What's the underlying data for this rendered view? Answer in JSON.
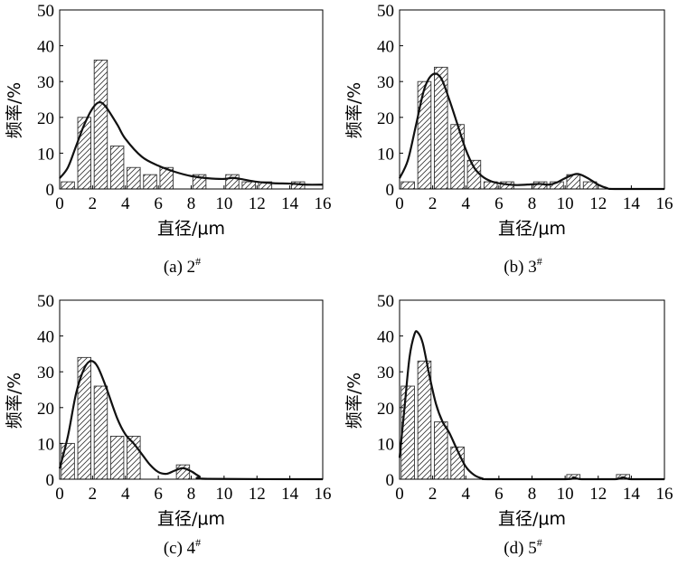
{
  "chart_data": [
    {
      "type": "bar",
      "caption": "(a) 2",
      "caption_sup": "#",
      "xlabel": "直径/μm",
      "ylabel": "频率/%",
      "xlim": [
        0,
        16
      ],
      "ylim": [
        0,
        50
      ],
      "xticks": [
        "0",
        "2",
        "4",
        "6",
        "8",
        "10",
        "12",
        "14",
        "16"
      ],
      "yticks": [
        "0",
        "10",
        "20",
        "30",
        "40",
        "50"
      ],
      "bin_width": 0.8,
      "bins": [
        {
          "x": 0.5,
          "value": 2
        },
        {
          "x": 1.5,
          "value": 20
        },
        {
          "x": 2.5,
          "value": 36
        },
        {
          "x": 3.5,
          "value": 12
        },
        {
          "x": 4.5,
          "value": 6
        },
        {
          "x": 5.5,
          "value": 4
        },
        {
          "x": 6.5,
          "value": 6
        },
        {
          "x": 8.5,
          "value": 4
        },
        {
          "x": 10.5,
          "value": 4
        },
        {
          "x": 11.5,
          "value": 2
        },
        {
          "x": 12.5,
          "value": 2
        },
        {
          "x": 14.5,
          "value": 2
        }
      ],
      "fit_curve": [
        [
          0,
          3
        ],
        [
          0.5,
          6
        ],
        [
          1,
          12
        ],
        [
          1.5,
          18
        ],
        [
          2,
          22.5
        ],
        [
          2.4,
          24.2
        ],
        [
          2.8,
          23
        ],
        [
          3.5,
          18
        ],
        [
          4,
          14
        ],
        [
          5,
          9
        ],
        [
          6,
          6.5
        ],
        [
          7,
          4.8
        ],
        [
          8,
          3.6
        ],
        [
          9,
          3
        ],
        [
          10,
          2.8
        ],
        [
          10.5,
          3.1
        ],
        [
          11,
          2.8
        ],
        [
          12,
          2
        ],
        [
          13,
          1.6
        ],
        [
          14,
          1.5
        ],
        [
          15,
          1.2
        ],
        [
          16,
          1.2
        ]
      ]
    },
    {
      "type": "bar",
      "caption": "(b) 3",
      "caption_sup": "#",
      "xlabel": "直径/μm",
      "ylabel": "频率/%",
      "xlim": [
        0,
        16
      ],
      "ylim": [
        0,
        50
      ],
      "xticks": [
        "0",
        "2",
        "4",
        "6",
        "8",
        "10",
        "12",
        "14",
        "16"
      ],
      "yticks": [
        "0",
        "10",
        "20",
        "30",
        "40",
        "50"
      ],
      "bin_width": 0.8,
      "bins": [
        {
          "x": 0.5,
          "value": 2
        },
        {
          "x": 1.5,
          "value": 30
        },
        {
          "x": 2.5,
          "value": 34
        },
        {
          "x": 3.5,
          "value": 18
        },
        {
          "x": 4.5,
          "value": 8
        },
        {
          "x": 5.5,
          "value": 2
        },
        {
          "x": 6.5,
          "value": 2
        },
        {
          "x": 8.5,
          "value": 2
        },
        {
          "x": 9.5,
          "value": 2
        },
        {
          "x": 10.5,
          "value": 4
        },
        {
          "x": 11.5,
          "value": 2
        }
      ],
      "fit_curve": [
        [
          0,
          3
        ],
        [
          0.5,
          8
        ],
        [
          1,
          18
        ],
        [
          1.5,
          28
        ],
        [
          2,
          32
        ],
        [
          2.5,
          31
        ],
        [
          3,
          25
        ],
        [
          3.5,
          18
        ],
        [
          4,
          11
        ],
        [
          4.5,
          6
        ],
        [
          5,
          3.5
        ],
        [
          5.5,
          2.2
        ],
        [
          6,
          1.6
        ],
        [
          7,
          1.1
        ],
        [
          8,
          1.3
        ],
        [
          8.5,
          1.4
        ],
        [
          9,
          1.2
        ],
        [
          9.5,
          1.8
        ],
        [
          10,
          3
        ],
        [
          10.7,
          4.2
        ],
        [
          11.3,
          3.2
        ],
        [
          12,
          1.2
        ],
        [
          12.5,
          0.3
        ],
        [
          13,
          0
        ],
        [
          16,
          0
        ]
      ]
    },
    {
      "type": "bar",
      "caption": "(c) 4",
      "caption_sup": "#",
      "xlabel": "直径/μm",
      "ylabel": "频率/%",
      "xlim": [
        0,
        16
      ],
      "ylim": [
        0,
        50
      ],
      "xticks": [
        "0",
        "2",
        "4",
        "6",
        "8",
        "10",
        "12",
        "14",
        "16"
      ],
      "yticks": [
        "0",
        "10",
        "20",
        "30",
        "40",
        "50"
      ],
      "bin_width": 0.8,
      "bins": [
        {
          "x": 0.5,
          "value": 10
        },
        {
          "x": 1.5,
          "value": 34
        },
        {
          "x": 2.5,
          "value": 26
        },
        {
          "x": 3.5,
          "value": 12
        },
        {
          "x": 4.5,
          "value": 12
        },
        {
          "x": 7.5,
          "value": 4
        }
      ],
      "fit_curve": [
        [
          0,
          3
        ],
        [
          0.5,
          12
        ],
        [
          1,
          24
        ],
        [
          1.5,
          31
        ],
        [
          1.9,
          33
        ],
        [
          2.3,
          31.5
        ],
        [
          2.8,
          26
        ],
        [
          3.5,
          17
        ],
        [
          4,
          12.5
        ],
        [
          4.5,
          10
        ],
        [
          5,
          7
        ],
        [
          5.5,
          4
        ],
        [
          6,
          2
        ],
        [
          6.5,
          1.5
        ],
        [
          7,
          2.4
        ],
        [
          7.5,
          3.1
        ],
        [
          8,
          2.2
        ],
        [
          8.5,
          0.8
        ],
        [
          9,
          0.1
        ],
        [
          16,
          0
        ]
      ]
    },
    {
      "type": "bar",
      "caption": "(d) 5",
      "caption_sup": "#",
      "xlabel": "直径/μm",
      "ylabel": "频率/%",
      "xlim": [
        0,
        16
      ],
      "ylim": [
        0,
        50
      ],
      "xticks": [
        "0",
        "2",
        "4",
        "6",
        "8",
        "10",
        "12",
        "14",
        "16"
      ],
      "yticks": [
        "0",
        "10",
        "20",
        "30",
        "40",
        "50"
      ],
      "bin_width": 0.8,
      "bins": [
        {
          "x": 0.5,
          "value": 26
        },
        {
          "x": 1.5,
          "value": 33
        },
        {
          "x": 2.5,
          "value": 16
        },
        {
          "x": 3.5,
          "value": 9
        },
        {
          "x": 10.5,
          "value": 1.3
        },
        {
          "x": 13.5,
          "value": 1.3
        }
      ],
      "fit_curve": [
        [
          0,
          6
        ],
        [
          0.3,
          20
        ],
        [
          0.6,
          34
        ],
        [
          0.9,
          40.5
        ],
        [
          1.1,
          41
        ],
        [
          1.4,
          38
        ],
        [
          1.8,
          29
        ],
        [
          2.2,
          21
        ],
        [
          2.6,
          16
        ],
        [
          3,
          13
        ],
        [
          3.5,
          8
        ],
        [
          4,
          3.5
        ],
        [
          4.5,
          1.2
        ],
        [
          5,
          0.2
        ],
        [
          5.5,
          0
        ],
        [
          10,
          0
        ],
        [
          10.5,
          0.5
        ],
        [
          11,
          0
        ],
        [
          13,
          0
        ],
        [
          13.5,
          0.5
        ],
        [
          14,
          0
        ],
        [
          16,
          0
        ]
      ]
    }
  ]
}
